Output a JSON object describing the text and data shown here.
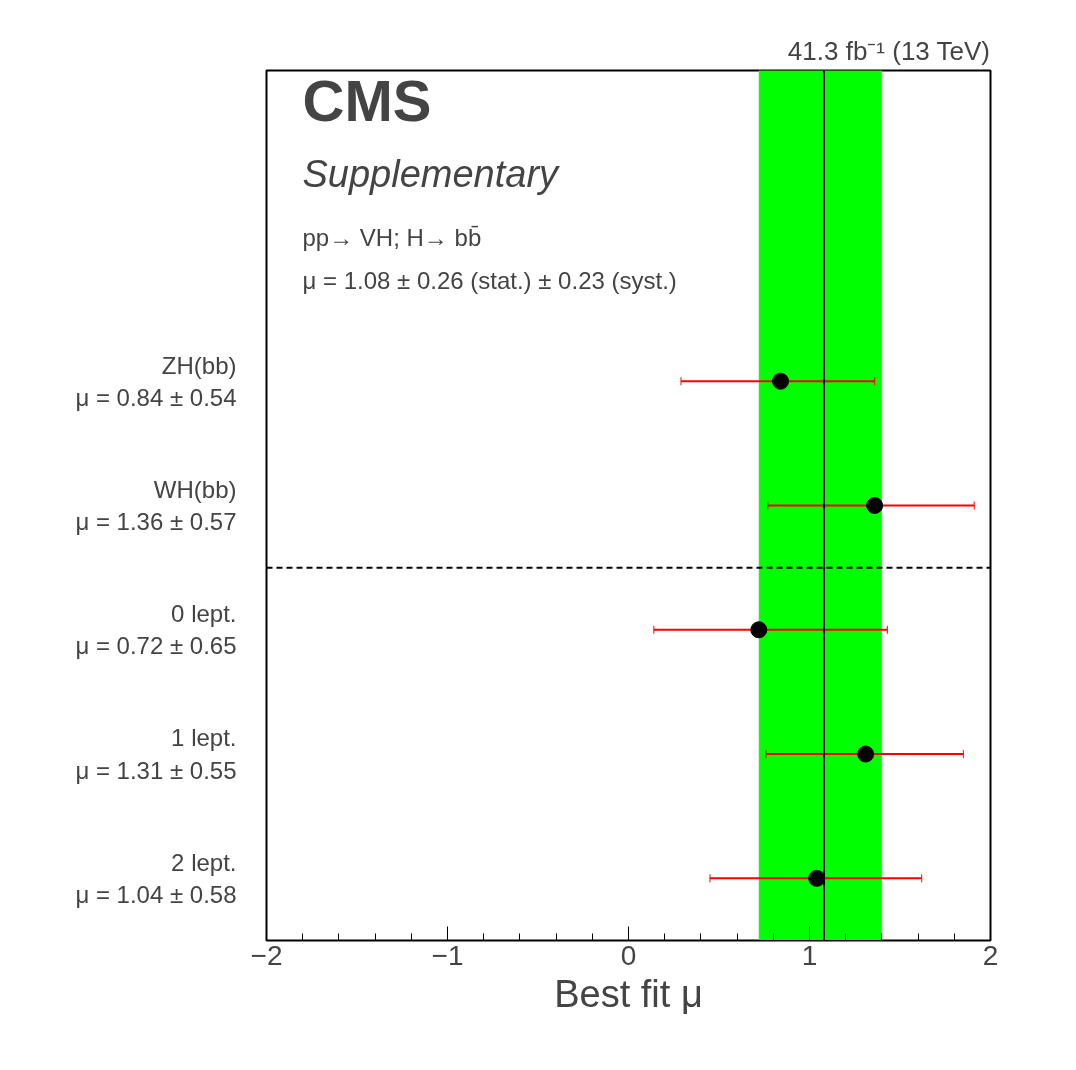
{
  "chart_data": {
    "type": "scatter",
    "orientation": "horizontal",
    "title": "41.3 fb⁻¹ (13 TeV)",
    "xlabel": "Best fit μ",
    "categories": [
      "ZH(bb)\nμ = 0.84 ± 0.54",
      "WH(bb)\nμ = 1.36 ± 0.57",
      "0 lept.\nμ = 0.72 ± 0.65",
      "1 lept.\nμ = 1.31 ± 0.55",
      "2 lept.\nμ = 1.04 ± 0.58"
    ],
    "series": [
      {
        "color": "#000000",
        "values": [
          0.84,
          1.36,
          0.72,
          1.31,
          1.04
        ],
        "errors": [
          [
            0.29,
            1.36
          ],
          [
            0.77,
            1.91
          ],
          [
            0.14,
            1.43
          ],
          [
            0.76,
            1.85
          ],
          [
            0.45,
            1.62
          ]
        ]
      }
    ],
    "marker": "circle",
    "xlim": [
      -2,
      2
    ],
    "xticks": [
      {
        "value": -2,
        "label": "−2"
      },
      {
        "value": -1,
        "label": "−1"
      },
      {
        "value": 0,
        "label": "0"
      },
      {
        "value": 1,
        "label": "1"
      },
      {
        "value": 2,
        "label": "2"
      }
    ],
    "ref_lines": [
      {
        "axis": "x",
        "value": 1.08,
        "color": "#000000",
        "line_style": "solid"
      }
    ],
    "bands": [
      {
        "axis": "x",
        "from": 0.72,
        "to": 1.4,
        "color": "#00ff00"
      }
    ],
    "annotations": [
      "CMS",
      "Supplementary",
      "pp→ VH; H→ bb̄",
      "μ = 1.08 ± 0.26 (stat.) ± 0.23 (syst.)"
    ],
    "grid": false
  }
}
